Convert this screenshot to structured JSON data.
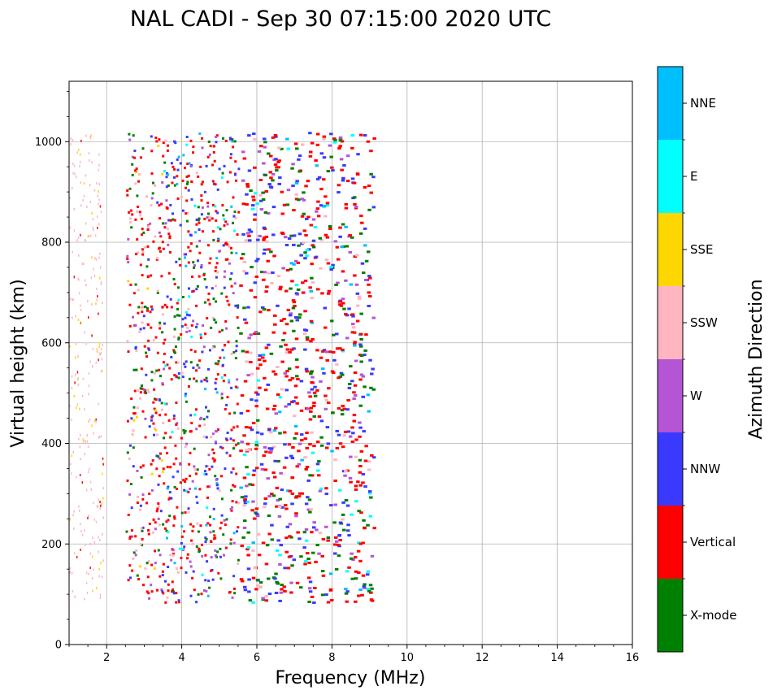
{
  "chart_data": {
    "type": "scatter",
    "title": "NAL CADI - Sep 30 07:15:00 2020 UTC",
    "xlabel": "Frequency (MHz)",
    "ylabel": "Virtual height (km)",
    "xlim": [
      1,
      16
    ],
    "ylim": [
      0,
      1120
    ],
    "x_ticks": [
      2,
      4,
      6,
      8,
      10,
      12,
      14,
      16
    ],
    "x_tick_labels": [
      "2",
      "4",
      "6",
      "8",
      "10",
      "12",
      "14",
      "16"
    ],
    "y_ticks": [
      0,
      200,
      400,
      600,
      800,
      1000
    ],
    "y_tick_labels": [
      "0",
      "200",
      "400",
      "600",
      "800",
      "1000"
    ],
    "grid": true,
    "colorbar": {
      "label": "Azimuth Direction",
      "categories": [
        "X-mode",
        "Vertical",
        "NNW",
        "W",
        "SSW",
        "SSE",
        "E",
        "NNE"
      ],
      "colors": [
        "#008000",
        "#ff0000",
        "#3a3aff",
        "#b455d6",
        "#ffb6c1",
        "#ffd700",
        "#00ffff",
        "#00bfff"
      ]
    },
    "scatter_extent": {
      "frequency_range_mhz": [
        1,
        9.1
      ],
      "height_range_km": [
        85,
        1020
      ],
      "approx_points": 2200,
      "note": "Points are dense echoes spread over 1–9 MHz and 85–1020 km; individual positions approximated procedurally"
    }
  }
}
